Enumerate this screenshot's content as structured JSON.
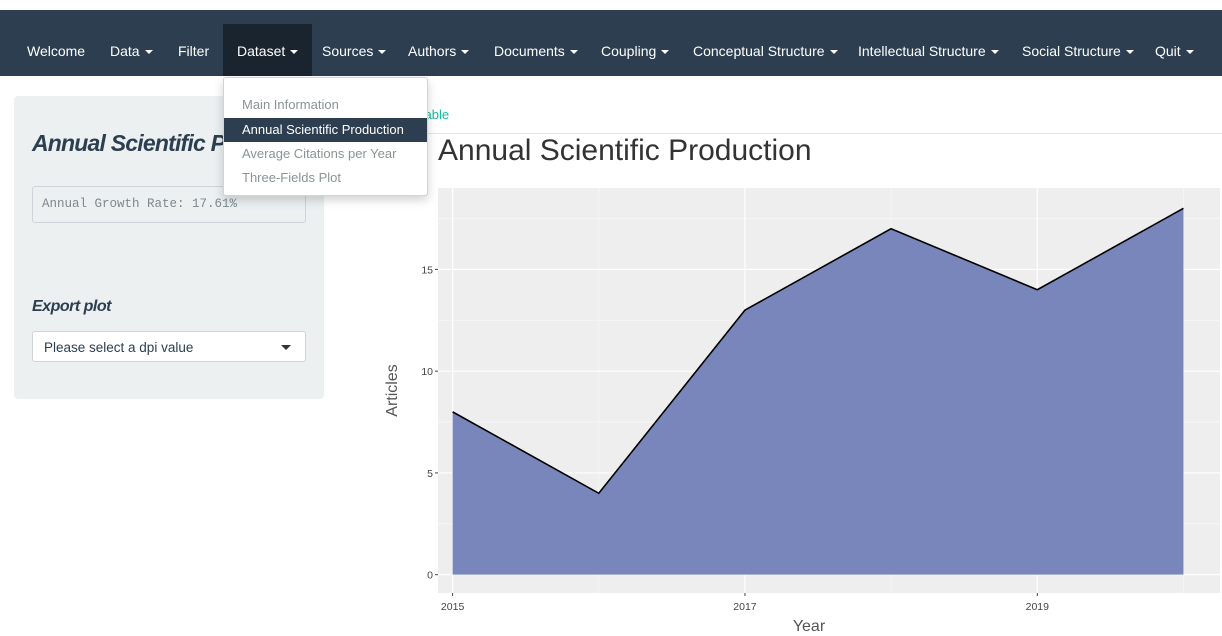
{
  "nav": {
    "items": [
      {
        "label": "Welcome",
        "caret": false
      },
      {
        "label": "Data",
        "caret": true
      },
      {
        "label": "Filter",
        "caret": false
      },
      {
        "label": "Dataset",
        "caret": true
      },
      {
        "label": "Sources",
        "caret": true
      },
      {
        "label": "Authors",
        "caret": true
      },
      {
        "label": "Documents",
        "caret": true
      },
      {
        "label": "Coupling",
        "caret": true
      },
      {
        "label": "Conceptual Structure",
        "caret": true
      },
      {
        "label": "Intellectual Structure",
        "caret": true
      },
      {
        "label": "Social Structure",
        "caret": true
      },
      {
        "label": "Quit",
        "caret": true
      }
    ],
    "active_index": 3
  },
  "dropdown": {
    "items": [
      "Main Information",
      "Annual Scientific Production",
      "Average Citations per Year",
      "Three-Fields Plot"
    ],
    "selected_index": 1
  },
  "sidebar": {
    "title": "Annual Scientific Production",
    "growth_text": "Annual Growth Rate: 17.61%",
    "export_label": "Export plot",
    "dpi_placeholder": "Please select a dpi value"
  },
  "main": {
    "tab_partial": "Table",
    "plot_title": "Annual Scientific Production"
  },
  "colors": {
    "navbar": "#2c3e50",
    "area_fill": "#7886bb",
    "accent": "#18bc9c",
    "panel_bg": "#eeeeee"
  },
  "chart_data": {
    "type": "area",
    "x": [
      2015,
      2016,
      2017,
      2018,
      2019,
      2020
    ],
    "values": [
      8,
      4,
      13,
      17,
      14,
      18
    ],
    "xlabel": "Year",
    "ylabel": "Articles",
    "x_ticks": [
      2015,
      2017,
      2019
    ],
    "y_ticks": [
      0,
      5,
      10,
      15
    ],
    "xlim": [
      2014.9,
      2020.25
    ],
    "ylim": [
      -0.9,
      19
    ],
    "grid": true
  }
}
